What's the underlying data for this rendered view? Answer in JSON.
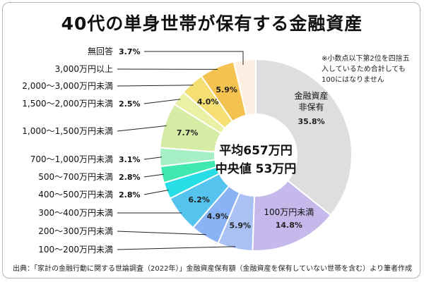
{
  "title": "40代の単身世帯が保有する金融資産",
  "note": "※小数点以下第2位を四捨五入しているため合計しても100にはなりません",
  "source": "出典：「家計の金融行動に関する世論調査（2022年）」金融資産保有額（金融資産を保有していない世帯を含む）より筆者作成",
  "center": {
    "mean": "平均657万円",
    "median": "中央値 53万円"
  },
  "chart_data": {
    "type": "pie",
    "title": "40代の単身世帯が保有する金融資産",
    "unit": "%",
    "slices": [
      {
        "label": "金融資産非保有",
        "value": 35.8,
        "display": "35.8%",
        "color": "#dedede"
      },
      {
        "label": "100万円未満",
        "value": 14.8,
        "display": "14.8%",
        "color": "#c5b9ec"
      },
      {
        "label": "100～200万円未満",
        "value": 5.9,
        "display": "5.9%",
        "color": "#a9c2f3"
      },
      {
        "label": "200～300万円未満",
        "value": 4.9,
        "display": "4.9%",
        "color": "#89b3f5"
      },
      {
        "label": "300～400万円未満",
        "value": 6.2,
        "display": "6.2%",
        "color": "#54c3ee"
      },
      {
        "label": "400～500万円未満",
        "value": 2.8,
        "display": "2.8%",
        "color": "#27dde6"
      },
      {
        "label": "500～700万円未満",
        "value": 2.8,
        "display": "2.8%",
        "color": "#3fe8b0"
      },
      {
        "label": "700～1,000万円未満",
        "value": 3.1,
        "display": "3.1%",
        "color": "#a6efc4"
      },
      {
        "label": "1,000～1,500万円未満",
        "value": 7.7,
        "display": "7.7%",
        "color": "#d6eca4"
      },
      {
        "label": "1,500～2,000万円未満",
        "value": 2.5,
        "display": "2.5%",
        "color": "#eaf0a4"
      },
      {
        "label": "2,000～3,000万円未満",
        "value": 4.0,
        "display": "4.0%",
        "color": "#f5de72"
      },
      {
        "label": "3,000万円以上",
        "value": 5.9,
        "display": "5.9%",
        "color": "#f4c24e"
      },
      {
        "label": "無回答",
        "value": 3.7,
        "display": "3.7%",
        "color": "#fcefe2"
      }
    ]
  }
}
